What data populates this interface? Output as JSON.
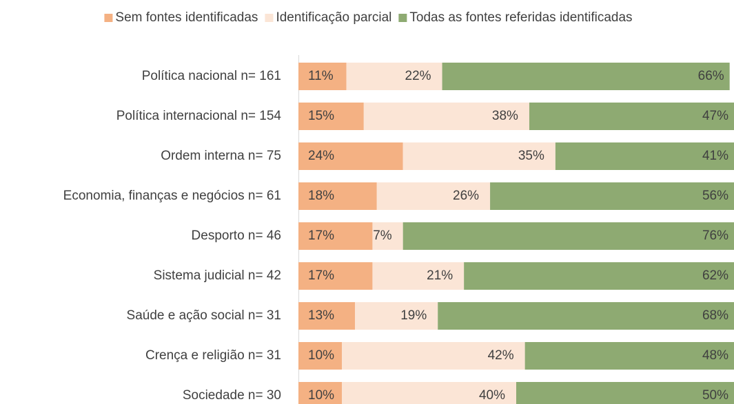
{
  "chart_data": {
    "type": "stacked-bar-horizontal",
    "categories": [
      "Política nacional n= 161",
      "Política internacional n= 154",
      "Ordem interna n= 75",
      "Economia, finanças e negócios n= 61",
      "Desporto n= 46",
      "Sistema judicial n= 42",
      "Saúde e ação social n= 31",
      "Crença e religião n= 31",
      "Sociedade n= 30"
    ],
    "series": [
      {
        "name": "Sem fontes identificadas",
        "color": "#f4b183",
        "values": [
          11,
          15,
          24,
          18,
          17,
          17,
          13,
          10,
          10
        ],
        "value_labels": [
          "11%",
          "15%",
          "24%",
          "18%",
          "17%",
          "17%",
          "13%",
          "10%",
          "10%"
        ]
      },
      {
        "name": "Identificação parcial",
        "color": "#fbe5d6",
        "values": [
          22,
          38,
          35,
          26,
          7,
          21,
          19,
          42,
          40
        ],
        "value_labels": [
          "22%",
          "38%",
          "35%",
          "26%",
          "7%",
          "21%",
          "19%",
          "42%",
          "40%"
        ]
      },
      {
        "name": "Todas as fontes referidas identificadas",
        "color": "#8eaa72",
        "values": [
          66,
          47,
          41,
          56,
          76,
          62,
          68,
          48,
          50
        ],
        "value_labels": [
          "66%",
          "47%",
          "41%",
          "56%",
          "76%",
          "62%",
          "68%",
          "48%",
          "50%"
        ]
      }
    ],
    "xlim": [
      0,
      100
    ],
    "legend": "top"
  }
}
